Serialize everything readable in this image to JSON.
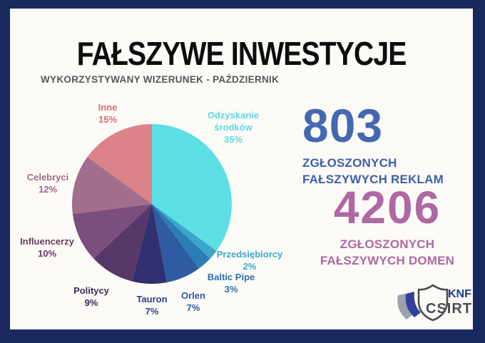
{
  "page": {
    "border_color": "#17295E",
    "card_bg": "#FCFBF7"
  },
  "header": {
    "title": "FAŁSZYWE INWESTYCJE",
    "subtitle": "WYKORZYSTYWANY WIZERUNEK - PAŹDZIERNIK"
  },
  "chart_data": {
    "type": "pie",
    "title": "WYKORZYSTYWANY WIZERUNEK - PAŹDZIERNIK",
    "start_at": "12-oclock",
    "direction": "clockwise",
    "unit": "%",
    "slices": [
      {
        "label": "Odzyskanie środków",
        "value": 35,
        "pct": "35%",
        "color": "#5CE0E4",
        "label_color": "#5CDCE0"
      },
      {
        "label": "Przedsiębiorcy",
        "value": 2,
        "pct": "2%",
        "color": "#3CA6CA",
        "label_color": "#3AA9CE"
      },
      {
        "label": "Baltic Pipe",
        "value": 3,
        "pct": "3%",
        "color": "#2A7EB4",
        "label_color": "#2B6FAE"
      },
      {
        "label": "Orlen",
        "value": 7,
        "pct": "7%",
        "color": "#2E5BA1",
        "label_color": "#2C57A8"
      },
      {
        "label": "Tauron",
        "value": 7,
        "pct": "7%",
        "color": "#303070",
        "label_color": "#323E8E"
      },
      {
        "label": "Politycy",
        "value": 9,
        "pct": "9%",
        "color": "#573767",
        "label_color": "#3F2B54"
      },
      {
        "label": "Influencerzy",
        "value": 10,
        "pct": "10%",
        "color": "#7C4E7D",
        "label_color": "#6B3C60"
      },
      {
        "label": "Celebryci",
        "value": 12,
        "pct": "12%",
        "color": "#A16E8B",
        "label_color": "#A4678B"
      },
      {
        "label": "Inne",
        "value": 15,
        "pct": "15%",
        "color": "#DC8289",
        "label_color": "#DF6A72"
      }
    ]
  },
  "stats": [
    {
      "value": "803",
      "caption_line1": "ZGŁOSZONYCH",
      "caption_line2": "FAŁSZYWYCH REKLAM",
      "value_color": "#4468B1",
      "caption_color": "#3D5FAD"
    },
    {
      "value": "4206",
      "caption_line1": "ZGŁOSZONYCH",
      "caption_line2": "FAŁSZYWYCH DOMEN",
      "value_color": "#AE68A4",
      "caption_color": "#AE68A4"
    }
  ],
  "logo": {
    "brand_top": "KNF",
    "brand_bottom": "CSIRT",
    "brand_top_color": "#1E3A86",
    "brand_bottom_color": "#4B4B54"
  }
}
